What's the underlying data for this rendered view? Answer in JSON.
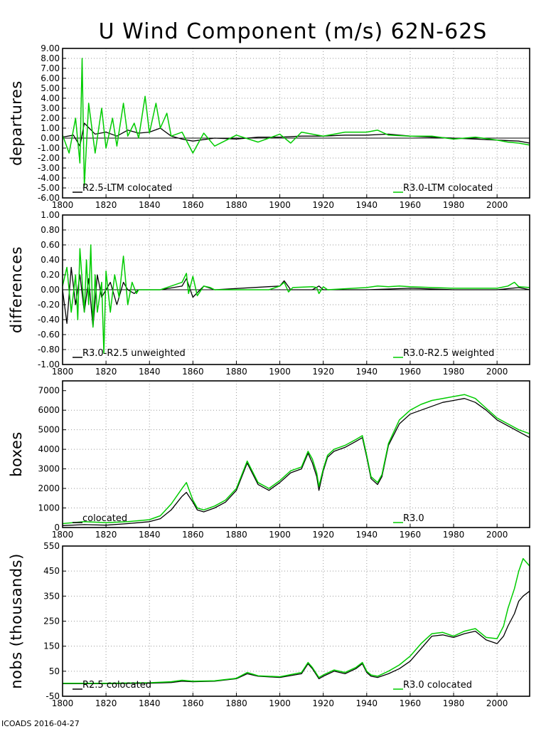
{
  "title": "U Wind Component (m/s) 62N-62S",
  "footer": "ICOADS 2016-04-27",
  "colors": {
    "series_a": "#000000",
    "series_b": "#00cc00"
  },
  "chart_data": [
    {
      "id": "departures",
      "type": "line",
      "ylabel": "departures",
      "xlim": [
        1800,
        2015
      ],
      "ylim": [
        -6,
        9
      ],
      "xticks": [
        "1800",
        "1820",
        "1840",
        "1860",
        "1880",
        "1900",
        "1920",
        "1940",
        "1960",
        "1980",
        "2000"
      ],
      "yticks": [
        "-6.00",
        "-5.00",
        "-4.00",
        "-3.00",
        "-2.00",
        "-1.00",
        "0.00",
        "1.00",
        "2.00",
        "3.00",
        "4.00",
        "5.00",
        "6.00",
        "7.00",
        "8.00",
        "9.00"
      ],
      "grid": true,
      "zero_line": true,
      "legend": [
        "R2.5-LTM colocated",
        "R3.0-LTM colocated"
      ],
      "series": [
        {
          "name": "R2.5-LTM colocated",
          "color": "#000000",
          "x": [
            1800,
            1805,
            1808,
            1810,
            1815,
            1820,
            1825,
            1830,
            1835,
            1840,
            1845,
            1850,
            1855,
            1860,
            1870,
            1880,
            1890,
            1900,
            1910,
            1920,
            1930,
            1940,
            1950,
            1960,
            1970,
            1980,
            1990,
            2000,
            2010,
            2015
          ],
          "y": [
            0.1,
            0.3,
            -0.8,
            1.5,
            0.4,
            0.6,
            0.2,
            0.8,
            0.5,
            0.6,
            1.0,
            0.2,
            -0.1,
            -0.3,
            0.0,
            -0.1,
            0.1,
            0.1,
            0.2,
            0.2,
            0.3,
            0.3,
            0.4,
            0.2,
            0.1,
            0.0,
            -0.1,
            -0.2,
            -0.3,
            -0.5
          ]
        },
        {
          "name": "R3.0-LTM colocated",
          "color": "#00cc00",
          "x": [
            1800,
            1803,
            1806,
            1808,
            1809,
            1810,
            1812,
            1815,
            1818,
            1820,
            1823,
            1825,
            1828,
            1830,
            1833,
            1835,
            1838,
            1840,
            1843,
            1845,
            1848,
            1850,
            1855,
            1860,
            1865,
            1870,
            1880,
            1890,
            1900,
            1905,
            1910,
            1920,
            1930,
            1940,
            1945,
            1950,
            1960,
            1970,
            1980,
            1990,
            2000,
            2005,
            2010,
            2015
          ],
          "y": [
            0.3,
            -1.5,
            2.0,
            -2.5,
            8.0,
            -4.8,
            3.5,
            -1.5,
            3.0,
            -1.0,
            2.0,
            -0.8,
            3.5,
            0.2,
            1.5,
            0.0,
            4.2,
            0.5,
            3.5,
            1.0,
            2.5,
            0.2,
            0.6,
            -1.5,
            0.5,
            -0.8,
            0.3,
            -0.4,
            0.4,
            -0.5,
            0.6,
            0.2,
            0.6,
            0.6,
            0.8,
            0.3,
            0.2,
            0.2,
            -0.1,
            0.1,
            -0.2,
            -0.4,
            -0.5,
            -0.7
          ]
        }
      ]
    },
    {
      "id": "differences",
      "type": "line",
      "ylabel": "differences",
      "xlim": [
        1800,
        2015
      ],
      "ylim": [
        -1,
        1
      ],
      "xticks": [
        "1800",
        "1820",
        "1840",
        "1860",
        "1880",
        "1900",
        "1920",
        "1940",
        "1960",
        "1980",
        "2000"
      ],
      "yticks": [
        "-1.00",
        "-0.80",
        "-0.60",
        "-0.40",
        "-0.20",
        "0.00",
        "0.20",
        "0.40",
        "0.60",
        "0.80",
        "1.00"
      ],
      "grid": true,
      "zero_line": true,
      "legend": [
        "R3.0-R2.5 unweighted",
        "R3.0-R2.5 weighted"
      ],
      "series": [
        {
          "name": "R3.0-R2.5 unweighted",
          "color": "#000000",
          "x": [
            1800,
            1802,
            1804,
            1806,
            1808,
            1810,
            1812,
            1814,
            1816,
            1818,
            1820,
            1822,
            1825,
            1828,
            1830,
            1833,
            1835,
            1845,
            1855,
            1857,
            1860,
            1865,
            1870,
            1900,
            1902,
            1905,
            1915,
            1918,
            1920,
            1940,
            1960,
            1980,
            2000,
            2010,
            2015
          ],
          "y": [
            0.0,
            -0.45,
            0.3,
            -0.2,
            0.2,
            -0.3,
            0.15,
            -0.5,
            0.2,
            -0.1,
            0.0,
            0.1,
            -0.2,
            0.1,
            0.0,
            -0.05,
            0.0,
            0.0,
            0.05,
            0.15,
            -0.1,
            0.05,
            0.0,
            0.05,
            0.12,
            0.0,
            0.0,
            0.05,
            0.0,
            0.0,
            0.02,
            0.0,
            0.0,
            0.03,
            0.0
          ]
        },
        {
          "name": "R3.0-R2.5 weighted",
          "color": "#00cc00",
          "x": [
            1800,
            1802,
            1804,
            1806,
            1807,
            1808,
            1810,
            1811,
            1812,
            1813,
            1814,
            1815,
            1816,
            1818,
            1819,
            1820,
            1822,
            1824,
            1826,
            1828,
            1830,
            1832,
            1834,
            1835,
            1845,
            1847,
            1855,
            1857,
            1858,
            1860,
            1862,
            1865,
            1868,
            1870,
            1895,
            1900,
            1902,
            1904,
            1906,
            1915,
            1917,
            1918,
            1920,
            1922,
            1940,
            1945,
            1950,
            1955,
            1960,
            1970,
            1980,
            1990,
            2000,
            2005,
            2008,
            2010,
            2015
          ],
          "y": [
            0.05,
            0.3,
            -0.3,
            0.2,
            -0.4,
            0.55,
            -0.3,
            0.4,
            -0.2,
            0.6,
            -0.5,
            0.2,
            -0.3,
            0.1,
            -0.85,
            0.25,
            -0.3,
            0.2,
            -0.1,
            0.45,
            -0.2,
            0.1,
            -0.05,
            0.0,
            0.0,
            0.02,
            0.1,
            0.22,
            -0.05,
            0.18,
            -0.08,
            0.05,
            0.03,
            0.0,
            0.0,
            0.05,
            0.1,
            -0.03,
            0.03,
            0.04,
            0.03,
            -0.05,
            0.04,
            0.0,
            0.03,
            0.05,
            0.04,
            0.05,
            0.04,
            0.03,
            0.02,
            0.02,
            0.02,
            0.05,
            0.1,
            0.04,
            0.03
          ]
        }
      ]
    },
    {
      "id": "boxes",
      "type": "line",
      "ylabel": "boxes",
      "xlim": [
        1800,
        2015
      ],
      "ylim": [
        0,
        7500
      ],
      "xticks": [
        "1800",
        "1820",
        "1840",
        "1860",
        "1880",
        "1900",
        "1920",
        "1940",
        "1960",
        "1980",
        "2000"
      ],
      "yticks": [
        "0",
        "1000",
        "2000",
        "3000",
        "4000",
        "5000",
        "6000",
        "7000"
      ],
      "grid": true,
      "zero_line": false,
      "legend": [
        "colocated",
        "R3.0"
      ],
      "series": [
        {
          "name": "colocated",
          "color": "#000000",
          "x": [
            1800,
            1810,
            1820,
            1830,
            1840,
            1845,
            1850,
            1855,
            1857,
            1860,
            1862,
            1865,
            1870,
            1875,
            1880,
            1885,
            1890,
            1895,
            1900,
            1905,
            1910,
            1913,
            1915,
            1917,
            1918,
            1920,
            1922,
            1925,
            1930,
            1935,
            1938,
            1940,
            1942,
            1945,
            1947,
            1950,
            1955,
            1960,
            1965,
            1970,
            1975,
            1980,
            1985,
            1990,
            1995,
            2000,
            2005,
            2010,
            2015
          ],
          "y": [
            100,
            150,
            120,
            200,
            300,
            450,
            900,
            1600,
            1800,
            1300,
            900,
            800,
            1000,
            1300,
            1900,
            3300,
            2200,
            1900,
            2300,
            2800,
            3000,
            3800,
            3300,
            2600,
            1900,
            2900,
            3600,
            3900,
            4100,
            4400,
            4600,
            3600,
            2500,
            2200,
            2600,
            4200,
            5300,
            5800,
            6000,
            6200,
            6400,
            6500,
            6600,
            6400,
            6000,
            5500,
            5200,
            4900,
            4600
          ]
        },
        {
          "name": "R3.0",
          "color": "#00cc00",
          "x": [
            1800,
            1810,
            1820,
            1830,
            1840,
            1845,
            1850,
            1855,
            1857,
            1860,
            1862,
            1865,
            1870,
            1875,
            1880,
            1885,
            1890,
            1895,
            1900,
            1905,
            1910,
            1913,
            1915,
            1917,
            1918,
            1920,
            1922,
            1925,
            1930,
            1935,
            1938,
            1940,
            1942,
            1945,
            1947,
            1950,
            1955,
            1960,
            1965,
            1970,
            1975,
            1980,
            1985,
            1990,
            1995,
            2000,
            2005,
            2010,
            2015
          ],
          "y": [
            200,
            300,
            250,
            300,
            400,
            600,
            1200,
            2000,
            2300,
            1400,
            1000,
            900,
            1100,
            1400,
            2000,
            3400,
            2300,
            2000,
            2400,
            2900,
            3100,
            3900,
            3500,
            2800,
            2100,
            3000,
            3700,
            4000,
            4200,
            4500,
            4700,
            3700,
            2600,
            2300,
            2700,
            4300,
            5500,
            6000,
            6300,
            6500,
            6600,
            6700,
            6800,
            6600,
            6100,
            5600,
            5300,
            5000,
            4800
          ]
        }
      ]
    },
    {
      "id": "nobs",
      "type": "line",
      "ylabel": "nobs (thousands)",
      "xlim": [
        1800,
        2015
      ],
      "ylim": [
        -50,
        550
      ],
      "xticks": [
        "1800",
        "1820",
        "1840",
        "1860",
        "1880",
        "1900",
        "1920",
        "1940",
        "1960",
        "1980",
        "2000"
      ],
      "yticks": [
        "-50",
        "50",
        "150",
        "250",
        "350",
        "450",
        "550"
      ],
      "grid": true,
      "zero_line": false,
      "legend": [
        "R2.5 colocated",
        "R3.0 colocated"
      ],
      "series": [
        {
          "name": "R2.5 colocated",
          "color": "#000000",
          "x": [
            1800,
            1820,
            1840,
            1850,
            1855,
            1860,
            1870,
            1880,
            1885,
            1890,
            1900,
            1910,
            1913,
            1915,
            1918,
            1920,
            1925,
            1930,
            1935,
            1938,
            1940,
            1942,
            1945,
            1950,
            1955,
            1960,
            1965,
            1970,
            1975,
            1980,
            1985,
            1990,
            1995,
            2000,
            2003,
            2005,
            2008,
            2010,
            2012,
            2015
          ],
          "y": [
            0,
            0,
            2,
            5,
            10,
            8,
            10,
            20,
            40,
            30,
            25,
            40,
            80,
            60,
            20,
            30,
            50,
            40,
            60,
            80,
            45,
            30,
            25,
            40,
            60,
            90,
            140,
            190,
            195,
            185,
            200,
            210,
            175,
            160,
            190,
            230,
            280,
            330,
            350,
            370
          ]
        },
        {
          "name": "R3.0 colocated",
          "color": "#00cc00",
          "x": [
            1800,
            1820,
            1840,
            1850,
            1855,
            1860,
            1870,
            1880,
            1885,
            1890,
            1900,
            1910,
            1913,
            1915,
            1918,
            1920,
            1925,
            1930,
            1935,
            1938,
            1940,
            1942,
            1945,
            1950,
            1955,
            1960,
            1965,
            1970,
            1975,
            1980,
            1985,
            1990,
            1995,
            2000,
            2003,
            2005,
            2008,
            2010,
            2012,
            2015
          ],
          "y": [
            2,
            2,
            4,
            8,
            14,
            10,
            12,
            22,
            45,
            32,
            28,
            45,
            85,
            65,
            25,
            35,
            55,
            45,
            65,
            85,
            50,
            35,
            30,
            50,
            75,
            110,
            160,
            200,
            205,
            190,
            210,
            220,
            185,
            180,
            230,
            300,
            380,
            450,
            500,
            470
          ]
        }
      ]
    }
  ]
}
